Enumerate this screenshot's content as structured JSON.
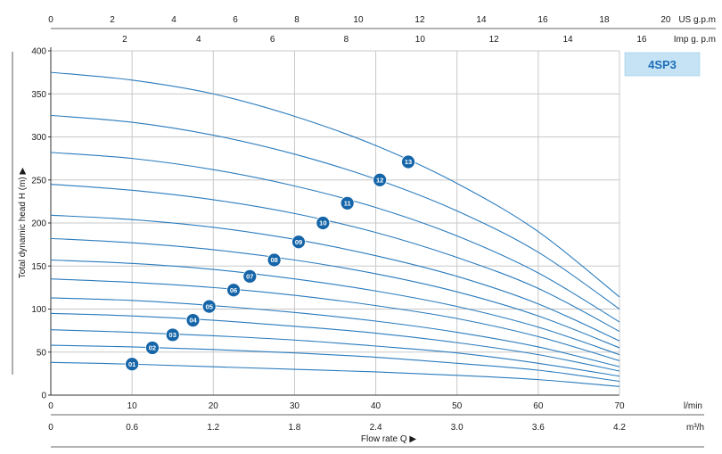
{
  "chart_data": {
    "type": "line",
    "model_label": "4SP3",
    "ylabel": "Total dynamic head H (m) ▶",
    "xlabel": "Flow rate Q ▶",
    "ylim": [
      0,
      400
    ],
    "yticks": [
      0,
      50,
      100,
      150,
      200,
      250,
      300,
      350,
      400
    ],
    "xlim": [
      0,
      70
    ],
    "x_lmin_ticks": [
      0,
      10,
      20,
      30,
      40,
      50,
      60,
      70
    ],
    "x_lmin_unit": "l/min",
    "x_m3h_ticks": [
      {
        "value": 0,
        "label": "0"
      },
      {
        "value": 10,
        "label": "0.6"
      },
      {
        "value": 20,
        "label": "1.2"
      },
      {
        "value": 30,
        "label": "1.8"
      },
      {
        "value": 40,
        "label": "2.4"
      },
      {
        "value": 50,
        "label": "3.0"
      },
      {
        "value": 60,
        "label": "3.6"
      },
      {
        "value": 70,
        "label": "4.2"
      }
    ],
    "x_m3h_unit": "m³/h",
    "x_usgpm_ticks": [
      0,
      2,
      4,
      6,
      8,
      10,
      12,
      14,
      16,
      18,
      20
    ],
    "x_usgpm_unit": "US g.p.m",
    "x_impgpm_ticks": [
      2,
      4,
      6,
      8,
      10,
      12,
      14,
      16
    ],
    "x_impgpm_unit": "Imp g. p.m",
    "grid": true,
    "line_color": "#2a7bbd",
    "badge_color": "#1565a8",
    "model_box_color": "#c5e3f5",
    "series": [
      {
        "name": "01",
        "label_at": [
          10,
          36
        ],
        "points": [
          [
            0,
            38
          ],
          [
            10,
            36
          ],
          [
            20,
            33
          ],
          [
            30,
            30
          ],
          [
            40,
            27
          ],
          [
            50,
            23
          ],
          [
            60,
            18
          ],
          [
            70,
            10
          ]
        ]
      },
      {
        "name": "02",
        "label_at": [
          12.5,
          55
        ],
        "points": [
          [
            0,
            58
          ],
          [
            10,
            56
          ],
          [
            20,
            53
          ],
          [
            30,
            49
          ],
          [
            40,
            44
          ],
          [
            50,
            37
          ],
          [
            60,
            29
          ],
          [
            70,
            16
          ]
        ]
      },
      {
        "name": "03",
        "label_at": [
          15,
          70
        ],
        "points": [
          [
            0,
            76
          ],
          [
            10,
            73
          ],
          [
            20,
            69
          ],
          [
            30,
            64
          ],
          [
            40,
            57
          ],
          [
            50,
            49
          ],
          [
            60,
            37
          ],
          [
            70,
            22
          ]
        ]
      },
      {
        "name": "04",
        "label_at": [
          17.5,
          87
        ],
        "points": [
          [
            0,
            95
          ],
          [
            10,
            92
          ],
          [
            20,
            87
          ],
          [
            30,
            80
          ],
          [
            40,
            72
          ],
          [
            50,
            61
          ],
          [
            60,
            47
          ],
          [
            70,
            28
          ]
        ]
      },
      {
        "name": "05",
        "label_at": [
          19.5,
          103
        ],
        "points": [
          [
            0,
            113
          ],
          [
            10,
            110
          ],
          [
            20,
            104
          ],
          [
            30,
            96
          ],
          [
            40,
            86
          ],
          [
            50,
            73
          ],
          [
            60,
            56
          ],
          [
            70,
            33
          ]
        ]
      },
      {
        "name": "06",
        "label_at": [
          22.5,
          122
        ],
        "points": [
          [
            0,
            135
          ],
          [
            10,
            131
          ],
          [
            20,
            125
          ],
          [
            30,
            116
          ],
          [
            40,
            104
          ],
          [
            50,
            89
          ],
          [
            60,
            68
          ],
          [
            70,
            40
          ]
        ]
      },
      {
        "name": "07",
        "label_at": [
          24.5,
          138
        ],
        "points": [
          [
            0,
            157
          ],
          [
            10,
            153
          ],
          [
            20,
            146
          ],
          [
            30,
            135
          ],
          [
            40,
            121
          ],
          [
            50,
            103
          ],
          [
            60,
            79
          ],
          [
            70,
            47
          ]
        ]
      },
      {
        "name": "08",
        "label_at": [
          27.5,
          157
        ],
        "points": [
          [
            0,
            182
          ],
          [
            10,
            177
          ],
          [
            20,
            169
          ],
          [
            30,
            157
          ],
          [
            40,
            141
          ],
          [
            50,
            120
          ],
          [
            60,
            92
          ],
          [
            70,
            55
          ]
        ]
      },
      {
        "name": "09",
        "label_at": [
          30.5,
          178
        ],
        "points": [
          [
            0,
            209
          ],
          [
            10,
            204
          ],
          [
            20,
            195
          ],
          [
            30,
            181
          ],
          [
            40,
            162
          ],
          [
            50,
            138
          ],
          [
            60,
            106
          ],
          [
            70,
            63
          ]
        ]
      },
      {
        "name": "10",
        "label_at": [
          33.5,
          200
        ],
        "points": [
          [
            0,
            245
          ],
          [
            10,
            238
          ],
          [
            20,
            227
          ],
          [
            30,
            211
          ],
          [
            40,
            189
          ],
          [
            50,
            160
          ],
          [
            60,
            124
          ],
          [
            70,
            74
          ]
        ]
      },
      {
        "name": "11",
        "label_at": [
          36.5,
          223
        ],
        "points": [
          [
            0,
            282
          ],
          [
            10,
            275
          ],
          [
            20,
            262
          ],
          [
            30,
            243
          ],
          [
            40,
            218
          ],
          [
            50,
            185
          ],
          [
            60,
            142
          ],
          [
            70,
            85
          ]
        ]
      },
      {
        "name": "12",
        "label_at": [
          40.5,
          250
        ],
        "points": [
          [
            0,
            325
          ],
          [
            10,
            317
          ],
          [
            20,
            302
          ],
          [
            30,
            280
          ],
          [
            40,
            251
          ],
          [
            50,
            214
          ],
          [
            60,
            166
          ],
          [
            70,
            100
          ]
        ]
      },
      {
        "name": "13",
        "label_at": [
          44,
          271
        ],
        "points": [
          [
            0,
            375
          ],
          [
            10,
            366
          ],
          [
            20,
            350
          ],
          [
            30,
            324
          ],
          [
            40,
            290
          ],
          [
            50,
            246
          ],
          [
            60,
            190
          ],
          [
            70,
            114
          ]
        ]
      }
    ]
  }
}
